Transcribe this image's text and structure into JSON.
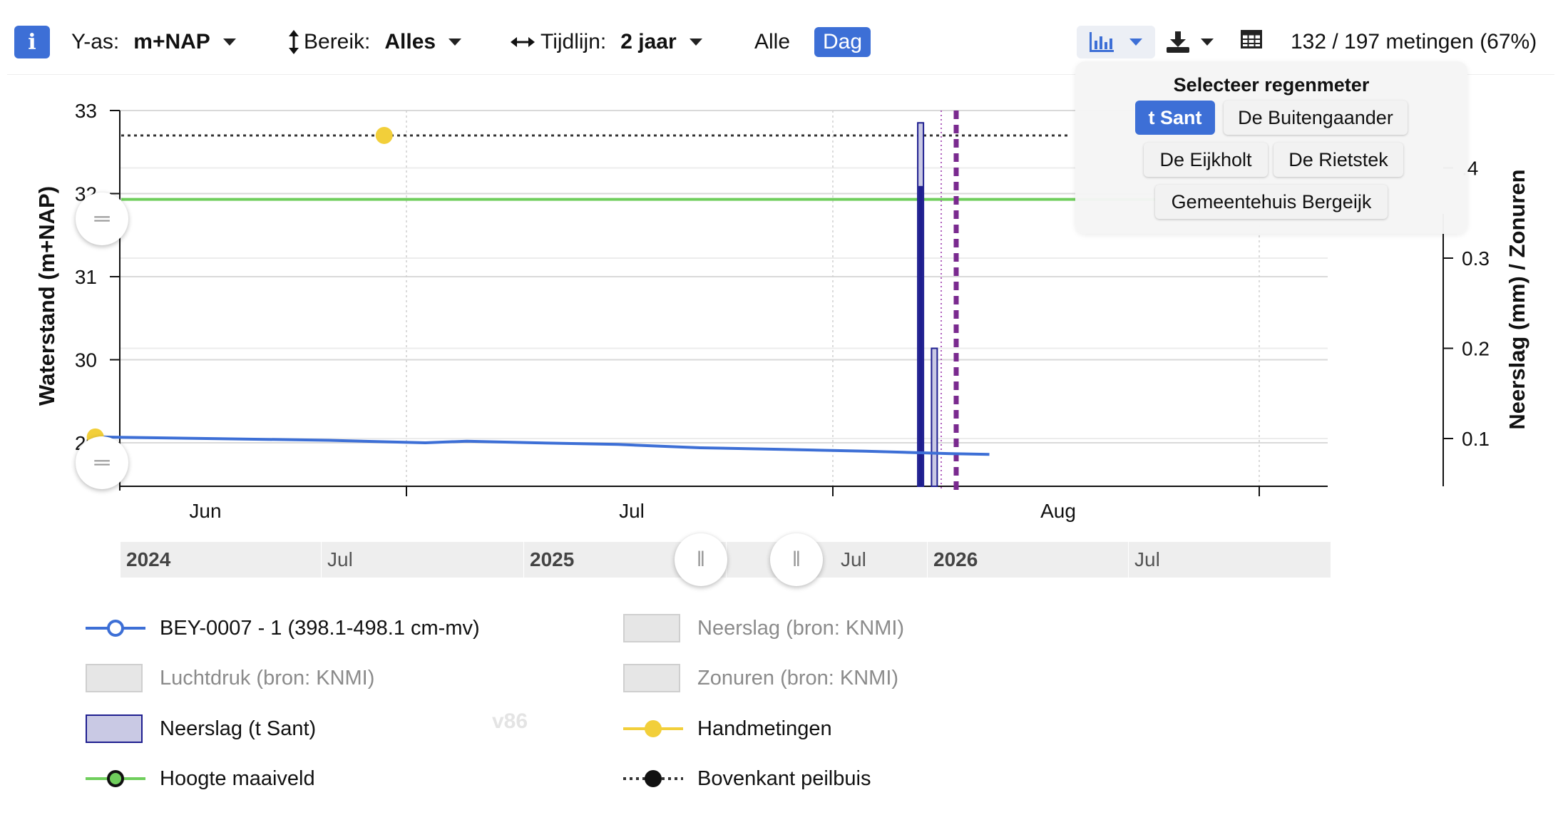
{
  "toolbar": {
    "info_icon_text": "i",
    "yaxis_label": "Y-as:",
    "yaxis_value": "m+NAP",
    "range_label": "Bereik:",
    "range_value": "Alles",
    "timeline_label": "Tijdlijn:",
    "timeline_value": "2 jaar",
    "alle_label": "Alle",
    "dag_label": "Dag",
    "count_text": "132 / 197 metingen (67%)",
    "icons": [
      "info-icon",
      "vertical-arrows-icon",
      "horizontal-arrows-icon",
      "bar-chart-icon",
      "download-icon",
      "table-icon",
      "caret-down-icon"
    ]
  },
  "regenmeter_popup": {
    "title": "Selecteer regenmeter",
    "options": [
      "t Sant",
      "De Buitengaander",
      "De Eijkholt",
      "De Rietstek",
      "Gemeentehuis Bergeijk"
    ],
    "selected": "t Sant"
  },
  "chart_data": {
    "type": "line",
    "ylabel_left": "Waterstand (m+NAP)",
    "ylabel_right": "Neerslag (mm) / Zonuren",
    "y_left_ticks": [
      "33",
      "32",
      "31",
      "30",
      "29"
    ],
    "y_right_ticks": [
      ".4",
      "0.3",
      "0.2",
      "0.1"
    ],
    "x_ticks": [
      "Jun",
      "Jul",
      "Aug"
    ],
    "ylim_left": [
      28.5,
      33
    ],
    "ylim_right": [
      0.05,
      0.45
    ],
    "grid": true,
    "series": [
      {
        "name": "BEY-0007 - 1 (398.1-498.1 cm-mv)",
        "type": "line",
        "color": "#3d6fd6",
        "x": [
          "2025-05-24",
          "2025-06-02",
          "2025-06-10",
          "2025-06-17",
          "2025-06-20",
          "2025-06-25",
          "2025-07-01",
          "2025-07-07",
          "2025-07-13",
          "2025-07-19",
          "2025-07-25",
          "2025-07-28"
        ],
        "y": [
          29.07,
          29.05,
          29.03,
          29.0,
          29.02,
          29.0,
          28.98,
          28.94,
          28.92,
          28.9,
          28.87,
          28.86
        ]
      },
      {
        "name": "Neerslag (t Sant)",
        "type": "bar",
        "color": "#1e1e8f",
        "x": [
          "2025-07-23",
          "2025-07-24"
        ],
        "y": [
          0.45,
          0.2
        ]
      },
      {
        "name": "Handmetingen",
        "type": "scatter",
        "color": "#f2cf3a",
        "x": [
          "2025-05-24",
          "2025-06-14"
        ],
        "y": [
          29.07,
          32.7
        ]
      },
      {
        "name": "Hoogte maaiveld",
        "type": "line",
        "color": "#6fce5c",
        "y": 31.93
      },
      {
        "name": "Bovenkant peilbuis",
        "type": "line",
        "color": "#333333",
        "y": 32.7
      }
    ]
  },
  "navigator": {
    "labels": [
      "2024",
      "Jul",
      "2025",
      "Jul",
      "2026",
      "Jul"
    ]
  },
  "legend": {
    "items": [
      {
        "label": "BEY-0007 - 1 (398.1-498.1 cm-mv)",
        "active": true
      },
      {
        "label": "Neerslag (bron: KNMI)",
        "active": false
      },
      {
        "label": "Luchtdruk (bron: KNMI)",
        "active": false
      },
      {
        "label": "Zonuren (bron: KNMI)",
        "active": false
      },
      {
        "label": "Neerslag (t Sant)",
        "active": true
      },
      {
        "label": "Handmetingen",
        "active": true
      },
      {
        "label": "Hoogte maaiveld",
        "active": true
      },
      {
        "label": "Bovenkant peilbuis",
        "active": true
      }
    ]
  },
  "version": "v86"
}
